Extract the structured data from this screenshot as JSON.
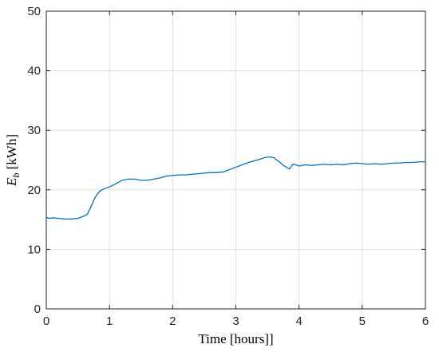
{
  "chart_data": {
    "type": "line",
    "xlabel": "Time [hours]]",
    "ylabel_main": "E",
    "ylabel_sub": "b",
    "ylabel_unit": " [kWh]",
    "xlim": [
      0,
      6
    ],
    "ylim": [
      0,
      50
    ],
    "xticks": [
      "0",
      "1",
      "2",
      "3",
      "4",
      "5",
      "6"
    ],
    "yticks": [
      "0",
      "10",
      "20",
      "30",
      "40",
      "50"
    ],
    "grid": true,
    "series": [
      {
        "color": "#0072bd",
        "x": [
          0.0,
          0.05,
          0.1,
          0.2,
          0.3,
          0.4,
          0.5,
          0.55,
          0.6,
          0.65,
          0.7,
          0.75,
          0.8,
          0.85,
          0.9,
          0.95,
          1.0,
          1.1,
          1.2,
          1.3,
          1.4,
          1.5,
          1.6,
          1.7,
          1.8,
          1.9,
          2.0,
          2.1,
          2.2,
          2.3,
          2.4,
          2.5,
          2.6,
          2.7,
          2.8,
          2.9,
          3.0,
          3.1,
          3.2,
          3.3,
          3.4,
          3.45,
          3.5,
          3.55,
          3.6,
          3.65,
          3.7,
          3.75,
          3.8,
          3.85,
          3.9,
          3.95,
          4.0,
          4.1,
          4.2,
          4.3,
          4.4,
          4.5,
          4.6,
          4.7,
          4.8,
          4.9,
          5.0,
          5.1,
          5.2,
          5.3,
          5.4,
          5.5,
          5.6,
          5.7,
          5.8,
          5.9,
          6.0
        ],
        "y": [
          15.4,
          15.2,
          15.3,
          15.2,
          15.1,
          15.1,
          15.2,
          15.4,
          15.6,
          15.9,
          17.0,
          18.2,
          19.2,
          19.8,
          20.1,
          20.3,
          20.5,
          21.0,
          21.6,
          21.8,
          21.8,
          21.6,
          21.6,
          21.8,
          22.0,
          22.3,
          22.4,
          22.5,
          22.5,
          22.6,
          22.7,
          22.8,
          22.9,
          22.9,
          23.0,
          23.4,
          23.8,
          24.2,
          24.6,
          24.9,
          25.2,
          25.4,
          25.5,
          25.5,
          25.4,
          25.0,
          24.6,
          24.1,
          23.8,
          23.5,
          24.3,
          24.2,
          24.0,
          24.2,
          24.1,
          24.2,
          24.3,
          24.2,
          24.3,
          24.2,
          24.4,
          24.5,
          24.4,
          24.3,
          24.4,
          24.3,
          24.4,
          24.5,
          24.5,
          24.6,
          24.6,
          24.7,
          24.7
        ]
      }
    ]
  }
}
